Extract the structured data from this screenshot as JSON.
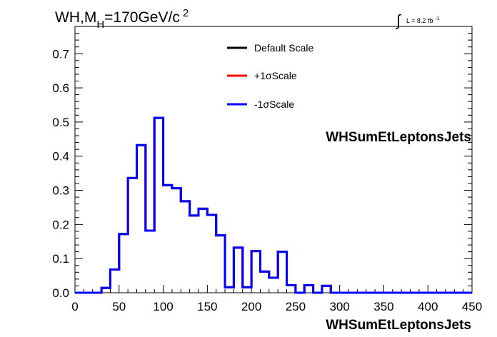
{
  "title_parts": {
    "pre": "WH,M",
    "sub": "H",
    "mid": "=170GeV/c",
    "sup": "2"
  },
  "lumi_parts": {
    "integral": "∫",
    "text": "L = 8.2 fb",
    "sup": "-1"
  },
  "legend": [
    {
      "label": "Default Scale",
      "color": "#000000"
    },
    {
      "label": "+1σScale",
      "color": "#ff0000"
    },
    {
      "label": "-1σScale",
      "color": "#0000ff"
    }
  ],
  "chart_data": {
    "type": "line",
    "title": "WH,M_H=170GeV/c^2",
    "xlabel": "WHSumEtLeptonsJets",
    "ylabel": "",
    "xlim": [
      0,
      450
    ],
    "ylim": [
      0,
      0.78
    ],
    "x_ticks": [
      "0",
      "50",
      "100",
      "150",
      "200",
      "250",
      "300",
      "350",
      "400",
      "450"
    ],
    "y_ticks": [
      "0.0",
      "0.1",
      "0.2",
      "0.3",
      "0.4",
      "0.5",
      "0.6",
      "0.7"
    ],
    "bin_edges": [
      0,
      10,
      20,
      30,
      40,
      50,
      60,
      70,
      80,
      90,
      100,
      110,
      120,
      130,
      140,
      150,
      160,
      170,
      180,
      190,
      200,
      210,
      220,
      230,
      240,
      250,
      260,
      270,
      280,
      290,
      300,
      310,
      320,
      330,
      340,
      350,
      360,
      370,
      380,
      390,
      400,
      410,
      420,
      430,
      440,
      450
    ],
    "series": [
      {
        "name": "Default Scale",
        "values": [
          0,
          0,
          0,
          0.014,
          0.068,
          0.172,
          0.336,
          0.432,
          0.182,
          0.512,
          0.315,
          0.306,
          0.268,
          0.226,
          0.246,
          0.228,
          0.168,
          0.016,
          0.132,
          0.016,
          0.122,
          0.062,
          0.044,
          0.12,
          0.022,
          0,
          0.022,
          0,
          0.02,
          0,
          0,
          0,
          0,
          0,
          0,
          0,
          0,
          0,
          0,
          0,
          0,
          0,
          0,
          0,
          0
        ]
      },
      {
        "name": "+1σScale",
        "values": [
          0,
          0,
          0,
          0.014,
          0.068,
          0.172,
          0.336,
          0.432,
          0.182,
          0.512,
          0.315,
          0.306,
          0.268,
          0.226,
          0.246,
          0.228,
          0.168,
          0.016,
          0.132,
          0.016,
          0.122,
          0.062,
          0.044,
          0.12,
          0.022,
          0,
          0.022,
          0,
          0.02,
          0,
          0,
          0,
          0,
          0,
          0,
          0,
          0,
          0,
          0,
          0,
          0,
          0,
          0,
          0,
          0
        ]
      },
      {
        "name": "-1σScale",
        "values": [
          0,
          0,
          0,
          0.014,
          0.068,
          0.172,
          0.336,
          0.432,
          0.182,
          0.512,
          0.315,
          0.306,
          0.268,
          0.226,
          0.246,
          0.228,
          0.168,
          0.016,
          0.132,
          0.016,
          0.122,
          0.062,
          0.044,
          0.12,
          0.022,
          0,
          0.022,
          0,
          0.02,
          0,
          0,
          0,
          0,
          0,
          0,
          0,
          0,
          0,
          0,
          0,
          0,
          0,
          0,
          0,
          0
        ]
      }
    ]
  }
}
